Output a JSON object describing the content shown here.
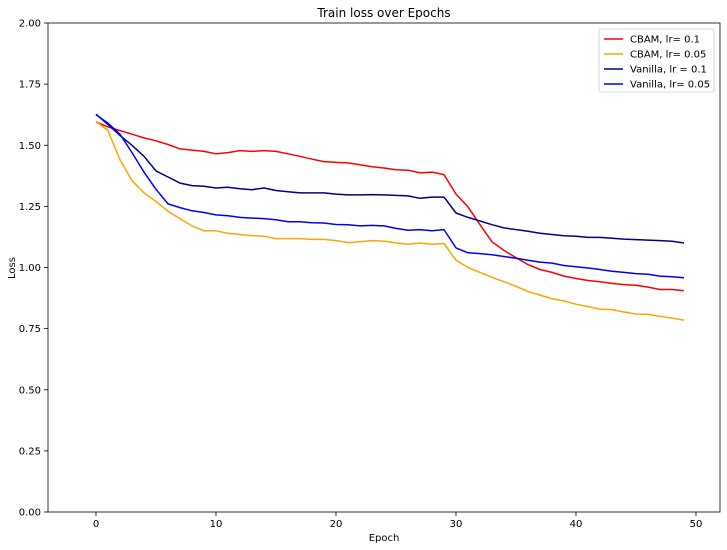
{
  "chart_data": {
    "type": "line",
    "title": "Train loss over Epochs",
    "xlabel": "Epoch",
    "ylabel": "Loss",
    "xlim": [
      -4,
      52
    ],
    "ylim": [
      0,
      2.0
    ],
    "xticks": [
      0,
      10,
      20,
      30,
      40,
      50
    ],
    "yticks": [
      0.0,
      0.25,
      0.5,
      0.75,
      1.0,
      1.25,
      1.5,
      1.75,
      2.0
    ],
    "grid": false,
    "legend_position": "top-right",
    "x": [
      0,
      1,
      2,
      3,
      4,
      5,
      6,
      7,
      8,
      9,
      10,
      11,
      12,
      13,
      14,
      15,
      16,
      17,
      18,
      19,
      20,
      21,
      22,
      23,
      24,
      25,
      26,
      27,
      28,
      29,
      30,
      31,
      32,
      33,
      34,
      35,
      36,
      37,
      38,
      39,
      40,
      41,
      42,
      43,
      44,
      45,
      46,
      47,
      48,
      49
    ],
    "series": [
      {
        "name": "CBAM, lr= 0.1",
        "color": "#ff0000",
        "values": [
          1.595,
          1.575,
          1.56,
          1.545,
          1.53,
          1.518,
          1.503,
          1.485,
          1.48,
          1.475,
          1.465,
          1.47,
          1.478,
          1.475,
          1.478,
          1.475,
          1.465,
          1.455,
          1.443,
          1.433,
          1.43,
          1.428,
          1.42,
          1.412,
          1.407,
          1.4,
          1.398,
          1.387,
          1.39,
          1.38,
          1.3,
          1.248,
          1.175,
          1.105,
          1.07,
          1.04,
          1.012,
          0.992,
          0.98,
          0.965,
          0.955,
          0.947,
          0.942,
          0.935,
          0.93,
          0.927,
          0.92,
          0.91,
          0.91,
          0.905
        ]
      },
      {
        "name": "CBAM, lr= 0.05",
        "color": "#ffa500",
        "values": [
          1.597,
          1.56,
          1.44,
          1.355,
          1.305,
          1.27,
          1.23,
          1.2,
          1.17,
          1.15,
          1.15,
          1.14,
          1.135,
          1.13,
          1.128,
          1.118,
          1.118,
          1.118,
          1.115,
          1.115,
          1.11,
          1.102,
          1.105,
          1.11,
          1.108,
          1.1,
          1.095,
          1.1,
          1.095,
          1.098,
          1.03,
          1.0,
          0.98,
          0.96,
          0.942,
          0.923,
          0.902,
          0.887,
          0.873,
          0.863,
          0.85,
          0.84,
          0.83,
          0.828,
          0.818,
          0.81,
          0.808,
          0.8,
          0.793,
          0.785
        ]
      },
      {
        "name": "Vanilla, lr = 0.1",
        "color": "#00008b",
        "values": [
          1.627,
          1.585,
          1.54,
          1.5,
          1.455,
          1.395,
          1.37,
          1.345,
          1.335,
          1.332,
          1.325,
          1.328,
          1.322,
          1.318,
          1.325,
          1.315,
          1.31,
          1.305,
          1.305,
          1.305,
          1.3,
          1.297,
          1.297,
          1.298,
          1.297,
          1.295,
          1.293,
          1.283,
          1.288,
          1.288,
          1.223,
          1.205,
          1.19,
          1.175,
          1.162,
          1.155,
          1.148,
          1.14,
          1.135,
          1.13,
          1.128,
          1.123,
          1.123,
          1.12,
          1.116,
          1.114,
          1.112,
          1.11,
          1.107,
          1.1
        ]
      },
      {
        "name": "Vanilla, lr= 0.05",
        "color": "#0000ff",
        "values": [
          1.625,
          1.59,
          1.545,
          1.47,
          1.39,
          1.32,
          1.26,
          1.245,
          1.232,
          1.225,
          1.215,
          1.212,
          1.205,
          1.202,
          1.2,
          1.195,
          1.187,
          1.187,
          1.183,
          1.182,
          1.176,
          1.175,
          1.17,
          1.172,
          1.17,
          1.16,
          1.152,
          1.155,
          1.15,
          1.155,
          1.08,
          1.06,
          1.057,
          1.052,
          1.045,
          1.038,
          1.03,
          1.022,
          1.018,
          1.008,
          1.003,
          0.998,
          0.992,
          0.985,
          0.98,
          0.975,
          0.972,
          0.965,
          0.962,
          0.958
        ]
      }
    ]
  }
}
